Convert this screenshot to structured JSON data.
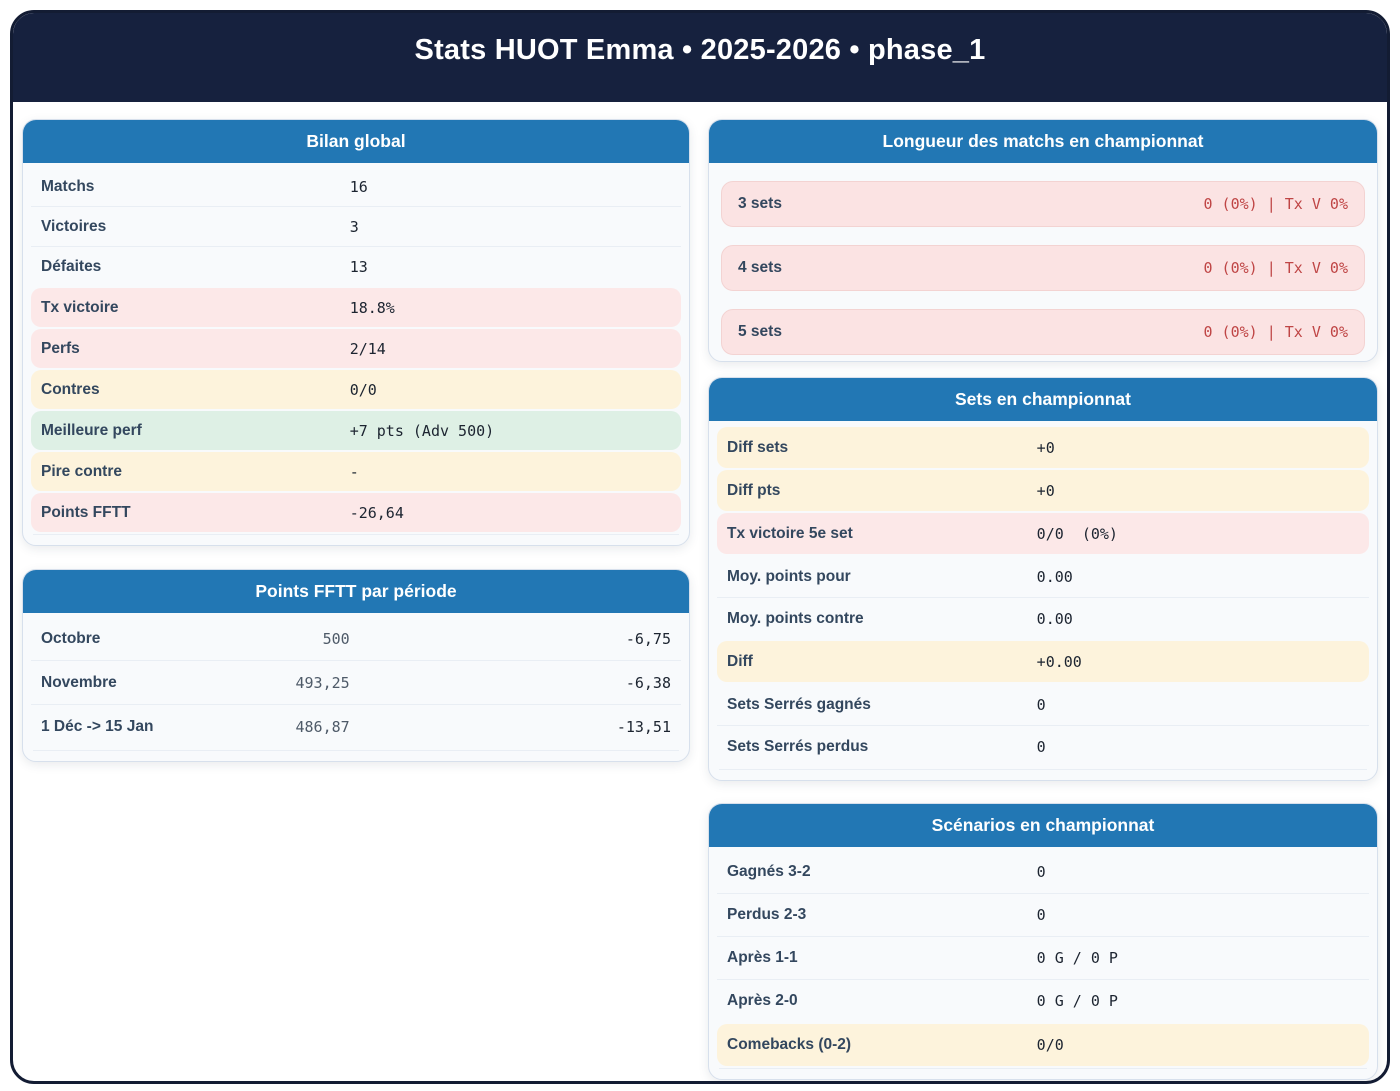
{
  "title": "Stats HUOT Emma • 2025-2026 • phase_1",
  "colors": {
    "frame_navy": "#16213e",
    "header_blue": "#2277b4",
    "highlight_pink": "#fce8e8",
    "highlight_yellow": "#fdf3dc",
    "highlight_green": "#def0e5",
    "pill_pink": "#fbe3e3",
    "red_text": "#bf4545",
    "label_slate": "#33475e"
  },
  "cards": {
    "bilan": {
      "title": "Bilan global",
      "rows": [
        {
          "label": "Matchs",
          "value": "16"
        },
        {
          "label": "Victoires",
          "value": "3"
        },
        {
          "label": "Défaites",
          "value": "13"
        },
        {
          "label": "Tx victoire",
          "value": "18.8%"
        },
        {
          "label": "Perfs",
          "value": "2/14"
        },
        {
          "label": "Contres",
          "value": "0/0"
        },
        {
          "label": "Meilleure perf",
          "value": "+7 pts (Adv 500)"
        },
        {
          "label": "Pire contre",
          "value": "-"
        },
        {
          "label": "Points FFTT",
          "value": "-26,64"
        }
      ]
    },
    "points_periode": {
      "title": "Points FFTT par période",
      "rows": [
        {
          "label": "Octobre",
          "points": "500",
          "delta": "-6,75"
        },
        {
          "label": "Novembre",
          "points": "493,25",
          "delta": "-6,38"
        },
        {
          "label": "1 Déc -> 15 Jan",
          "points": "486,87",
          "delta": "-13,51"
        }
      ]
    },
    "longueur": {
      "title": "Longueur des matchs en championnat",
      "rows": [
        {
          "label": "3 sets",
          "value": "0 (0%) | Tx V 0%"
        },
        {
          "label": "4 sets",
          "value": "0 (0%) | Tx V 0%"
        },
        {
          "label": "5 sets",
          "value": "0 (0%) | Tx V 0%"
        }
      ]
    },
    "sets": {
      "title": "Sets en championnat",
      "rows": [
        {
          "label": "Diff sets",
          "value": "+0"
        },
        {
          "label": "Diff pts",
          "value": "+0"
        },
        {
          "label": "Tx victoire 5e set",
          "value": "0/0  (0%)"
        },
        {
          "label": "Moy. points pour",
          "value": "0.00"
        },
        {
          "label": "Moy. points contre",
          "value": "0.00"
        },
        {
          "label": "Diff",
          "value": "+0.00"
        },
        {
          "label": "Sets Serrés gagnés",
          "value": "0"
        },
        {
          "label": "Sets Serrés perdus",
          "value": "0"
        }
      ]
    },
    "scenarios": {
      "title": "Scénarios en championnat",
      "rows": [
        {
          "label": "Gagnés 3-2",
          "value": "0"
        },
        {
          "label": "Perdus 2-3",
          "value": "0"
        },
        {
          "label": "Après 1-1",
          "value": "0 G / 0 P"
        },
        {
          "label": "Après 2-0",
          "value": "0 G / 0 P"
        },
        {
          "label": "Comebacks (0-2)",
          "value": "0/0"
        }
      ]
    }
  }
}
